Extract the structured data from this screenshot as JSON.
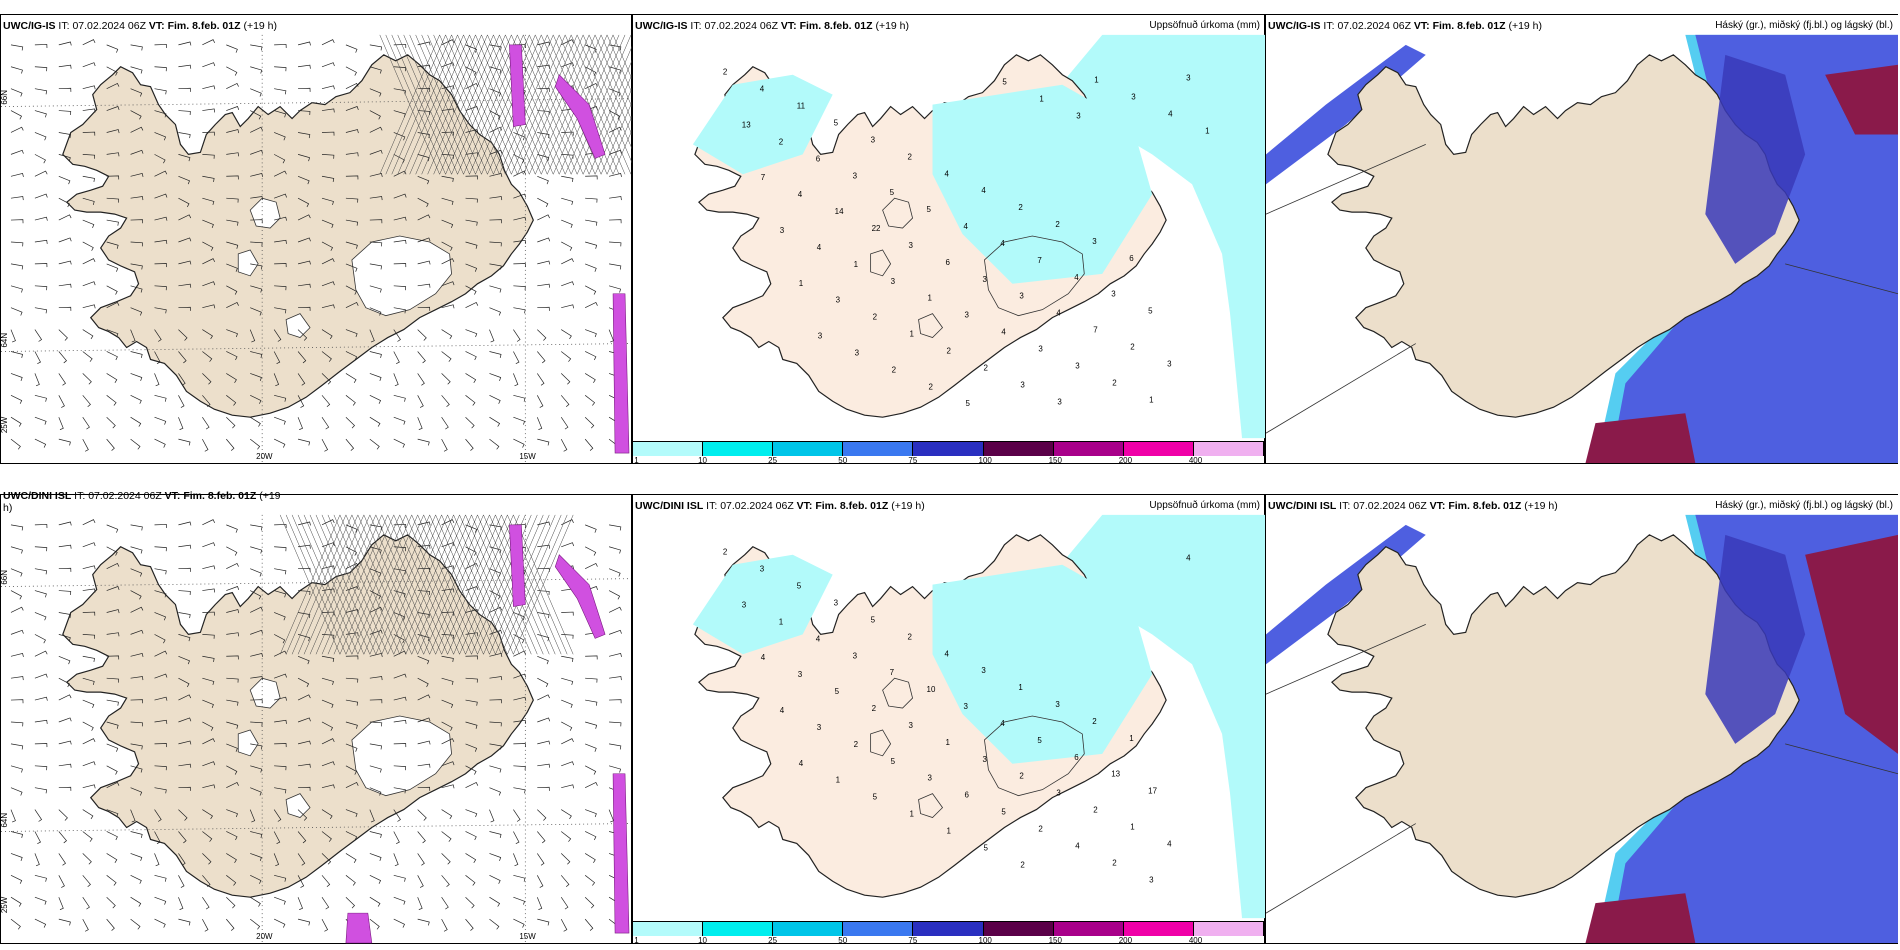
{
  "panels": [
    {
      "id": "p1",
      "model": "UWC/IG-IS",
      "it_label": "IT:",
      "it_value": "07.02.2024 06Z",
      "vt_label": "VT:",
      "vt_value": "Fim. 8.feb. 01Z",
      "lead": "(+19 h)",
      "right": "",
      "type": "wind"
    },
    {
      "id": "p2",
      "model": "UWC/IG-IS",
      "it_label": "IT:",
      "it_value": "07.02.2024 06Z",
      "vt_label": "VT:",
      "vt_value": "Fim. 8.feb. 01Z",
      "lead": "(+19 h)",
      "right": "Uppsöfnuð úrkoma (mm)",
      "type": "precip"
    },
    {
      "id": "p3",
      "model": "UWC/IG-IS",
      "it_label": "IT:",
      "it_value": "07.02.2024 06Z",
      "vt_label": "VT:",
      "vt_value": "Fim. 8.feb. 01Z",
      "lead": "(+19 h)",
      "right": "Háský (gr.), miðský (fj.bl.) og lágský (bl.)",
      "type": "cloud"
    },
    {
      "id": "p4",
      "model": "UWC/DINI ISL",
      "it_label": "IT:",
      "it_value": "07.02.2024 06Z",
      "vt_label": "VT:",
      "vt_value": "Fim. 8.feb. 01Z",
      "lead": "(+19",
      "lead2": "h)",
      "right": "",
      "type": "wind"
    },
    {
      "id": "p5",
      "model": "UWC/DINI ISL",
      "it_label": "IT:",
      "it_value": "07.02.2024 06Z",
      "vt_label": "VT:",
      "vt_value": "Fim. 8.feb. 01Z",
      "lead": "(+19 h)",
      "right": "Uppsöfnuð úrkoma (mm)",
      "type": "precip"
    },
    {
      "id": "p6",
      "model": "UWC/DINI ISL",
      "it_label": "IT:",
      "it_value": "07.02.2024 06Z",
      "vt_label": "VT:",
      "vt_value": "Fim. 8.feb. 01Z",
      "lead": "(+19 h)",
      "right": "Háský (gr.), miðský (fj.bl.) og lágský (bl.)",
      "type": "cloud"
    }
  ],
  "axis_labels": {
    "lon_left": "20W",
    "lon_right": "15W",
    "lat_top": "66N",
    "lat_mid": "64N",
    "lat_side": "25W",
    "lat_right_a": "66N",
    "lat_right_b": "64N"
  },
  "legend": {
    "ticks": [
      "1",
      "10",
      "25",
      "50",
      "75",
      "100",
      "150",
      "200",
      "400"
    ],
    "colors": [
      "#b3fbfb",
      "#00eeee",
      "#00c5e8",
      "#3a78f0",
      "#2a2fc0",
      "#5a0048",
      "#a8008a",
      "#f000a8",
      "#f0b0f0"
    ]
  },
  "colors": {
    "land": "#ecdfcb",
    "precip_land": "#fbece0",
    "precip": "#b2fafa",
    "cloud_high": "#4e5fe0",
    "cloud_mid": "#3a3ab8",
    "cloud_low": "#8a1a4a",
    "cloud_edge": "#43c8f0",
    "wind_magenta": "#d050e0"
  },
  "precip_top_numbers": [
    "2",
    "4",
    "11",
    "5",
    "3",
    "2",
    "4",
    "4",
    "2",
    "2",
    "3",
    "6",
    "13",
    "2",
    "6",
    "3",
    "5",
    "5",
    "4",
    "4",
    "7",
    "4",
    "3",
    "5",
    "7",
    "4",
    "14",
    "22",
    "3",
    "6",
    "3",
    "3",
    "4",
    "7",
    "2",
    "3",
    "3",
    "4",
    "1",
    "3",
    "1",
    "3",
    "4",
    "3",
    "3",
    "2",
    "1",
    "3",
    "1",
    "3",
    "2",
    "1",
    "2",
    "2",
    "3",
    "3",
    "1",
    "3",
    "4",
    "1",
    "3",
    "3",
    "2",
    "2",
    "5",
    "5",
    "1",
    "3"
  ],
  "precip_bottom_numbers": [
    "2",
    "3",
    "5",
    "3",
    "5",
    "2",
    "4",
    "3",
    "1",
    "3",
    "2",
    "1",
    "3",
    "1",
    "4",
    "3",
    "7",
    "10",
    "3",
    "4",
    "5",
    "6",
    "13",
    "17",
    "4",
    "3",
    "5",
    "2",
    "3",
    "1",
    "3",
    "2",
    "3",
    "2",
    "1",
    "4",
    "4",
    "3",
    "2",
    "5",
    "3",
    "6",
    "5",
    "2",
    "4",
    "2",
    "3",
    "4",
    "4",
    "1",
    "5",
    "1",
    "1",
    "5",
    "2"
  ]
}
